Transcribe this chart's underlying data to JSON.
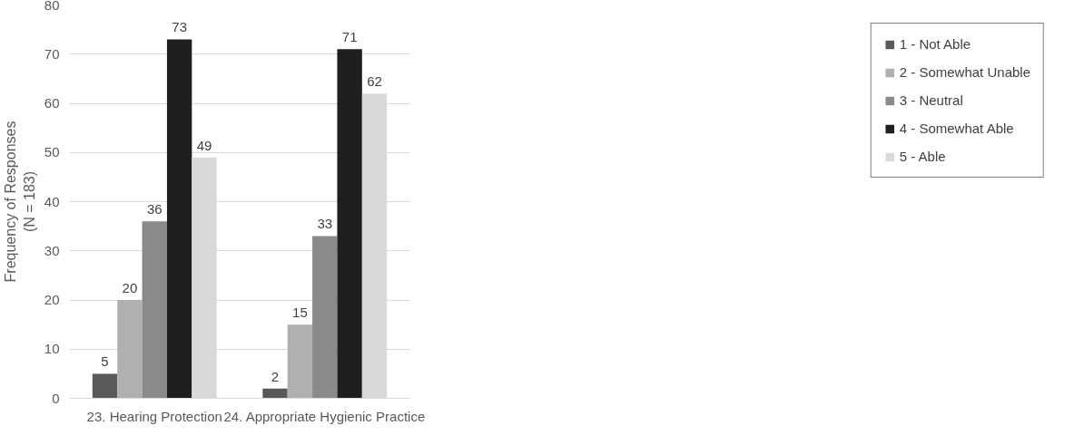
{
  "chart_data": {
    "type": "bar",
    "ylabel": "Frequency of Responses\n(N = 183)",
    "categories": [
      "23. Hearing Protection",
      "24. Appropriate Hygienic Practice"
    ],
    "series": [
      {
        "name": "1 - Not Able",
        "color": "#595959",
        "values": [
          5,
          2
        ]
      },
      {
        "name": "2 - Somewhat Unable",
        "color": "#b0b0b0",
        "values": [
          20,
          15
        ]
      },
      {
        "name": "3 - Neutral",
        "color": "#8a8a8a",
        "values": [
          36,
          33
        ]
      },
      {
        "name": "4 - Somewhat Able",
        "color": "#1f1f1f",
        "values": [
          73,
          71
        ]
      },
      {
        "name": "5 - Able",
        "color": "#d9d9d9",
        "values": [
          49,
          62
        ]
      }
    ],
    "ylim": [
      0,
      80
    ],
    "yticks": [
      0,
      10,
      20,
      30,
      40,
      50,
      60,
      70,
      80
    ],
    "grid": "y",
    "legend": "right",
    "data_labels": true
  }
}
